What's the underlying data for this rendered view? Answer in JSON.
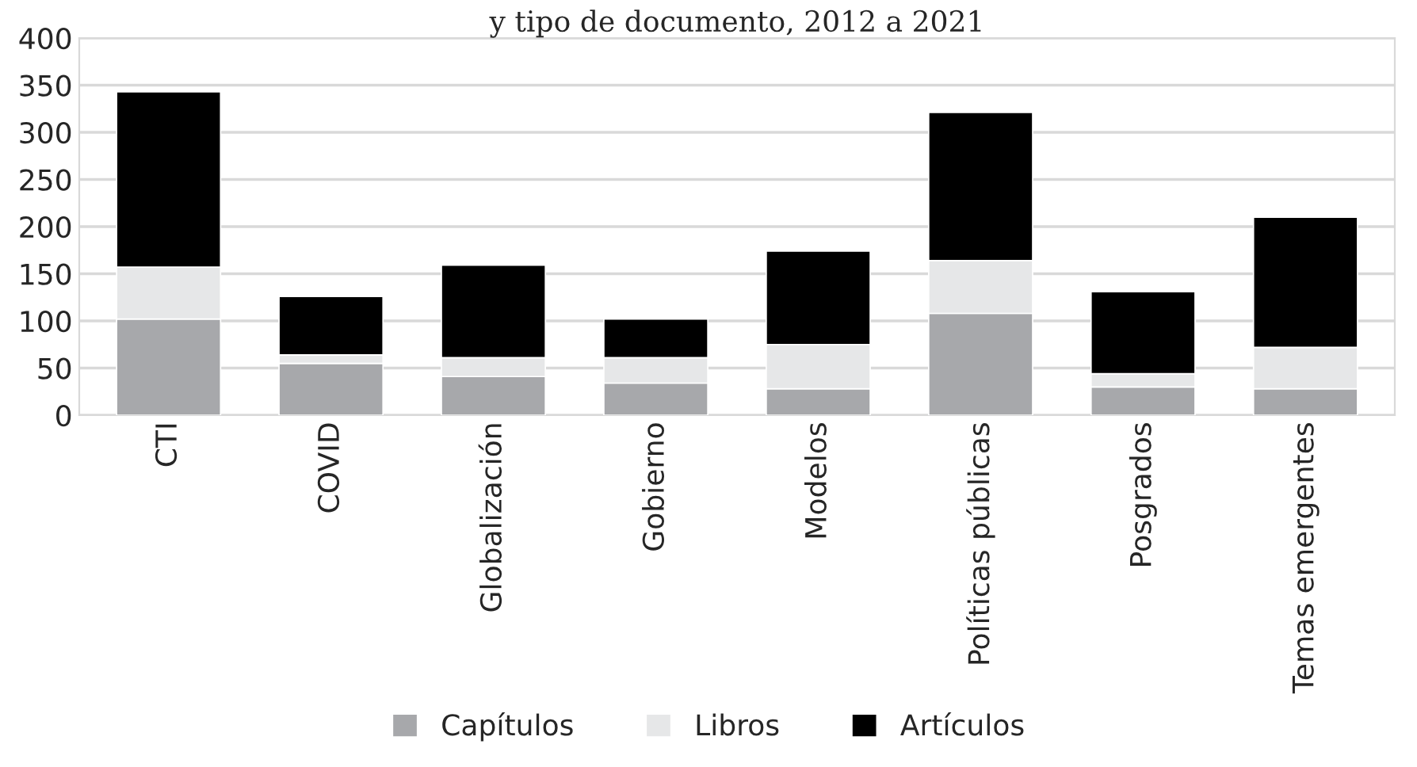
{
  "chart_data": {
    "type": "bar",
    "title": "y tipo de documento, 2012 a 2021",
    "categories": [
      "CTI",
      "COVID",
      "Globalización",
      "Gobierno",
      "Modelos",
      "Políticas públicas",
      "Posgrados",
      "Temas emergentes"
    ],
    "stacked": true,
    "series": [
      {
        "name": "Capítulos",
        "color": "#a7a8ab",
        "values": [
          102,
          55,
          41,
          34,
          28,
          108,
          30,
          28
        ]
      },
      {
        "name": "Libros",
        "color": "#e6e7e8",
        "values": [
          55,
          9,
          20,
          27,
          47,
          56,
          14,
          44
        ]
      },
      {
        "name": "Artículos",
        "color": "#000000",
        "values": [
          186,
          62,
          98,
          41,
          99,
          157,
          87,
          138
        ]
      }
    ],
    "ylim": [
      0,
      400
    ],
    "yticks": [
      0,
      50,
      100,
      150,
      200,
      250,
      300,
      350,
      400
    ],
    "grid": "y",
    "legend": "bottom"
  }
}
